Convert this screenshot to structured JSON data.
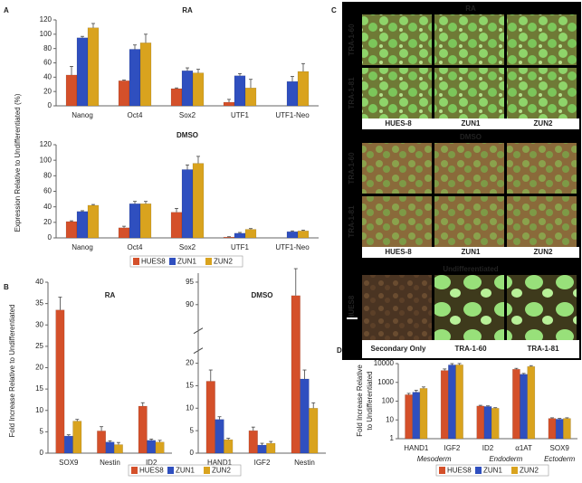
{
  "panel_labels": [
    "A",
    "B",
    "C",
    "D"
  ],
  "chart_data": [
    {
      "type": "bar",
      "title": "RA",
      "ylabel": "Expression Relative to Undifferentiated (%)",
      "categories": [
        "Nanog",
        "Oct4",
        "Sox2",
        "UTF1",
        "UTF1-Neo"
      ],
      "series": [
        {
          "name": "HUES8",
          "color": "#d4502a",
          "values": [
            43,
            35,
            24,
            5,
            null
          ],
          "errors": [
            12,
            1,
            1,
            4,
            null
          ]
        },
        {
          "name": "ZUN1",
          "color": "#2f4fbf",
          "values": [
            95,
            79,
            49,
            42,
            34
          ],
          "errors": [
            2,
            6,
            4,
            3,
            7
          ]
        },
        {
          "name": "ZUN2",
          "color": "#d9a31e",
          "values": [
            109,
            88,
            46,
            25,
            48
          ],
          "errors": [
            6,
            12,
            5,
            12,
            11
          ]
        }
      ],
      "ylim": [
        0,
        120
      ],
      "yticks": [
        0,
        20,
        40,
        60,
        80,
        100,
        120
      ]
    },
    {
      "type": "bar",
      "title": "DMSO",
      "categories": [
        "Nanog",
        "Oct4",
        "Sox2",
        "UTF1",
        "UTF1-Neo"
      ],
      "series": [
        {
          "name": "HUES8",
          "color": "#d4502a",
          "values": [
            21,
            13,
            33,
            1,
            null
          ],
          "errors": [
            1,
            2,
            5,
            0.5,
            null
          ]
        },
        {
          "name": "ZUN1",
          "color": "#2f4fbf",
          "values": [
            34,
            44,
            88,
            6,
            8
          ],
          "errors": [
            1,
            3,
            6,
            1,
            1
          ]
        },
        {
          "name": "ZUN2",
          "color": "#d9a31e",
          "values": [
            42,
            44,
            96,
            11,
            9
          ],
          "errors": [
            1,
            3,
            9,
            1,
            1
          ]
        }
      ],
      "ylim": [
        0,
        120
      ],
      "yticks": [
        0,
        20,
        40,
        60,
        80,
        100,
        120
      ],
      "legend": "bottom"
    },
    {
      "type": "bar",
      "title": "RA",
      "ylabel": "Fold Increase Relative to Undifferentiated",
      "categories": [
        "SOX9",
        "Nestin",
        "ID2"
      ],
      "series": [
        {
          "name": "HUES8",
          "color": "#d4502a",
          "values": [
            33.5,
            5.2,
            11
          ],
          "errors": [
            3,
            1,
            0.8
          ]
        },
        {
          "name": "ZUN1",
          "color": "#2f4fbf",
          "values": [
            4,
            2.6,
            3
          ],
          "errors": [
            0.3,
            0.3,
            0.3
          ]
        },
        {
          "name": "ZUN2",
          "color": "#d9a31e",
          "values": [
            7.5,
            2,
            2.6
          ],
          "errors": [
            0.4,
            0.5,
            0.4
          ]
        }
      ],
      "ylim": [
        0,
        40
      ],
      "yticks": [
        0,
        5,
        10,
        15,
        20,
        25,
        30,
        35,
        40
      ]
    },
    {
      "type": "bar",
      "title": "DMSO",
      "categories": [
        "HAND1",
        "IGF2",
        "Nestin"
      ],
      "series": [
        {
          "name": "HUES8",
          "color": "#d4502a",
          "values": [
            16,
            5,
            92
          ],
          "errors": [
            2.5,
            0.8,
            6
          ]
        },
        {
          "name": "ZUN1",
          "color": "#2f4fbf",
          "values": [
            7.5,
            1.8,
            16.5
          ],
          "errors": [
            0.6,
            0.4,
            2
          ]
        },
        {
          "name": "ZUN2",
          "color": "#d9a31e",
          "values": [
            3,
            2.2,
            10
          ],
          "errors": [
            0.3,
            0.4,
            1.2
          ]
        }
      ],
      "ylim": [
        0,
        97
      ],
      "axis_break": [
        22,
        85
      ],
      "yticks": [
        0,
        5,
        10,
        15,
        20,
        90,
        95
      ],
      "legend": "bottom"
    },
    {
      "type": "bar",
      "ylabel": [
        "Fold Increase Relative",
        "to Undifferentiated"
      ],
      "log_scale": true,
      "categories": [
        "HAND1",
        "IGF2",
        "ID2",
        "α1AT",
        "SOX9"
      ],
      "category_groups": [
        {
          "name": "Mesoderm",
          "categories": [
            "HAND1",
            "IGF2"
          ]
        },
        {
          "name": "Endoderm",
          "categories": [
            "ID2",
            "α1AT"
          ]
        },
        {
          "name": "Ectoderm",
          "categories": [
            "SOX9"
          ]
        }
      ],
      "series": [
        {
          "name": "HUES8",
          "color": "#d4502a",
          "values": [
            220,
            4300,
            55,
            5000,
            12
          ],
          "errors": [
            40,
            900,
            5,
            600,
            1
          ]
        },
        {
          "name": "ZUN1",
          "color": "#2f4fbf",
          "values": [
            300,
            8500,
            52,
            2700,
            11
          ],
          "errors": [
            80,
            1500,
            4,
            300,
            1
          ]
        },
        {
          "name": "ZUN2",
          "color": "#d9a31e",
          "values": [
            480,
            8600,
            42,
            7000,
            12
          ],
          "errors": [
            90,
            1500,
            3,
            800,
            1
          ]
        }
      ],
      "ylim": [
        1,
        10000
      ],
      "yticks": [
        1,
        10,
        100,
        1000,
        10000
      ],
      "legend": "bottom"
    }
  ],
  "micrographs": {
    "sections": [
      {
        "title": "RA",
        "rows": [
          "TRA-1-60",
          "TRA-1-81"
        ],
        "columns": [
          "HUES-8",
          "ZUN1",
          "ZUN2"
        ]
      },
      {
        "title": "DMSO",
        "rows": [
          "TRA-1-60",
          "TRA-1-81"
        ],
        "columns": [
          "HUES-8",
          "ZUN1",
          "ZUN2"
        ]
      },
      {
        "title": "Undifferentiated",
        "rows": [
          "HUES8"
        ],
        "columns": [
          "Secondary Only",
          "TRA-1-60",
          "TRA-1-81"
        ]
      }
    ]
  }
}
